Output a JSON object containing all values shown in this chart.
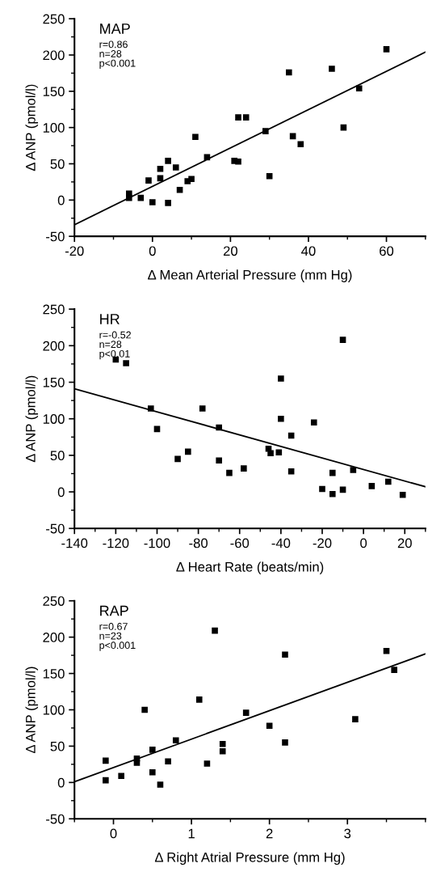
{
  "chart_data": [
    {
      "type": "scatter",
      "title": "MAP",
      "annotations": [
        "r=0.86",
        "n=28",
        "p<0.001"
      ],
      "xlabel": "Δ Mean Arterial Pressure (mm Hg)",
      "ylabel": "Δ ANP (pmol/l)",
      "xlim": [
        -20,
        70
      ],
      "xticks": [
        -20,
        0,
        20,
        40,
        60
      ],
      "ylim": [
        -50,
        250
      ],
      "yticks": [
        -50,
        0,
        50,
        100,
        150,
        200,
        250
      ],
      "grid": false,
      "legend": false,
      "series": [
        {
          "marker": "square",
          "color": "#000000",
          "x": [
            -6,
            -6,
            -3,
            -1,
            0,
            2,
            2,
            4,
            4,
            6,
            7,
            9,
            10,
            11,
            14,
            21,
            22,
            22,
            24,
            29,
            30,
            35,
            36,
            38,
            46,
            49,
            53,
            60
          ],
          "values": [
            9,
            3,
            3,
            27,
            -3,
            43,
            30,
            54,
            -4,
            45,
            14,
            26,
            29,
            87,
            59,
            54,
            53,
            114,
            114,
            95,
            33,
            176,
            88,
            77,
            181,
            100,
            154,
            208
          ]
        },
        {
          "type": "line",
          "color": "#000000",
          "x": [
            -20,
            70
          ],
          "values": [
            -34,
            204
          ]
        }
      ]
    },
    {
      "type": "scatter",
      "title": "HR",
      "annotations": [
        "r=-0.52",
        "n=28",
        "p<0.01"
      ],
      "xlabel": "Δ Heart Rate (beats/min)",
      "ylabel": "Δ ANP (pmol/l)",
      "xlim": [
        -140,
        30
      ],
      "xticks": [
        -140,
        -120,
        -100,
        -80,
        -60,
        -40,
        -20,
        0,
        20
      ],
      "ylim": [
        -50,
        250
      ],
      "yticks": [
        -50,
        0,
        50,
        100,
        150,
        200,
        250
      ],
      "grid": false,
      "legend": false,
      "series": [
        {
          "marker": "square",
          "color": "#000000",
          "x": [
            -120,
            -115,
            -103,
            -100,
            -90,
            -85,
            -78,
            -70,
            -70,
            -65,
            -58,
            -46,
            -45,
            -41,
            -40,
            -40,
            -35,
            -35,
            -24,
            -20,
            -15,
            -15,
            -10,
            -10,
            -5,
            4,
            12,
            19
          ],
          "values": [
            181,
            176,
            114,
            86,
            45,
            55,
            114,
            88,
            43,
            26,
            32,
            59,
            53,
            54,
            155,
            100,
            77,
            28,
            95,
            4,
            26,
            -3,
            208,
            3,
            30,
            8,
            14,
            -4
          ]
        },
        {
          "type": "line",
          "color": "#000000",
          "x": [
            -140,
            30
          ],
          "values": [
            141,
            7
          ]
        }
      ]
    },
    {
      "type": "scatter",
      "title": "RAP",
      "annotations": [
        "r=0.67",
        "n=23",
        "p<0.001"
      ],
      "xlabel": "Δ Right Atrial Pressure (mm Hg)",
      "ylabel": "Δ ANP (pmol/l)",
      "xlim": [
        -0.5,
        4
      ],
      "xticks": [
        0,
        1,
        2,
        3
      ],
      "ylim": [
        -50,
        250
      ],
      "yticks": [
        -50,
        0,
        50,
        100,
        150,
        200,
        250
      ],
      "grid": false,
      "legend": false,
      "series": [
        {
          "marker": "square",
          "color": "#000000",
          "x": [
            -0.1,
            -0.1,
            0.1,
            0.3,
            0.3,
            0.4,
            0.5,
            0.5,
            0.6,
            0.7,
            0.8,
            1.1,
            1.2,
            1.3,
            1.4,
            1.4,
            1.7,
            2.0,
            2.2,
            2.2,
            3.1,
            3.5,
            3.6
          ],
          "values": [
            30,
            3,
            9,
            33,
            27,
            100,
            45,
            14,
            -3,
            29,
            58,
            114,
            26,
            209,
            53,
            43,
            96,
            78,
            176,
            55,
            87,
            181,
            155
          ]
        },
        {
          "type": "line",
          "color": "#000000",
          "x": [
            -0.5,
            4
          ],
          "values": [
            1,
            177
          ]
        }
      ]
    }
  ]
}
